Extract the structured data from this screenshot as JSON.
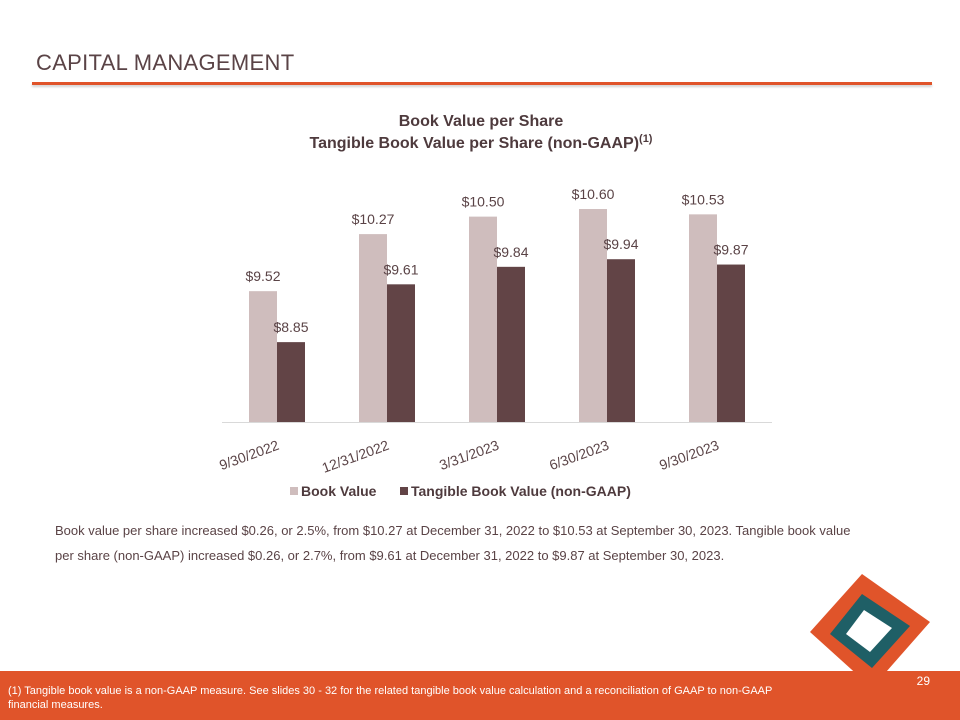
{
  "slide": {
    "title": "CAPITAL MANAGEMENT",
    "body_text": "Book value per share increased $0.26, or 2.5%, from $10.27 at December 31, 2022 to $10.53 at September 30, 2023. Tangible book value per share (non-GAAP) increased $0.26, or 2.7%, from $9.61 at December 31, 2022 to $9.87 at September 30, 2023.",
    "footnote": "(1) Tangible book value is a non-GAAP measure.  See slides 30 - 32 for the related tangible book value calculation and a reconciliation of GAAP to non-GAAP financial measures.",
    "page_number": "29"
  },
  "colors": {
    "accent": "#e0542a",
    "book_value": "#cfbdbd",
    "tangible_book_value": "#624446",
    "logo_orange": "#e0542a",
    "logo_teal": "#1f5f66"
  },
  "chart_data": {
    "type": "bar",
    "title": "Book Value per Share",
    "subtitle": "Tangible Book Value per Share (non-GAAP)",
    "subtitle_superscript": "(1)",
    "categories": [
      "9/30/2022",
      "12/31/2022",
      "3/31/2023",
      "6/30/2023",
      "9/30/2023"
    ],
    "series": [
      {
        "name": "Book Value",
        "values": [
          9.52,
          10.27,
          10.5,
          10.6,
          10.53
        ],
        "labels": [
          "$9.52",
          "$10.27",
          "$10.50",
          "$10.60",
          "$10.53"
        ]
      },
      {
        "name": "Tangible Book Value (non-GAAP)",
        "values": [
          8.85,
          9.61,
          9.84,
          9.94,
          9.87
        ],
        "labels": [
          "$8.85",
          "$9.61",
          "$9.84",
          "$9.94",
          "$9.87"
        ]
      }
    ],
    "ylim": [
      7.8,
      10.85
    ],
    "grid": false,
    "legend_position": "bottom"
  }
}
